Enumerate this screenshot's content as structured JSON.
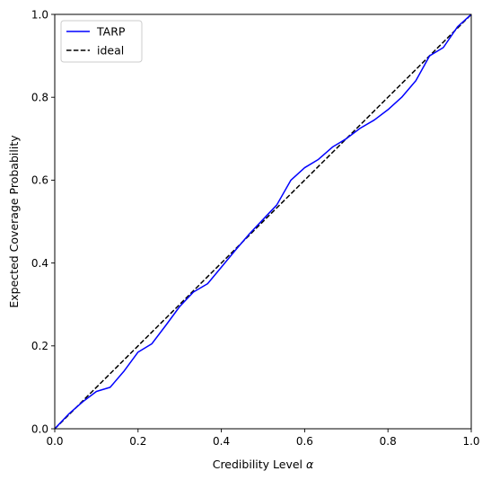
{
  "chart_data": {
    "type": "line",
    "xlabel": "Credibility Level",
    "xlabel_symbol": "α",
    "ylabel": "Expected Coverage Probability",
    "xlim": [
      0,
      1
    ],
    "ylim": [
      0,
      1
    ],
    "xticks": [
      0.0,
      0.2,
      0.4,
      0.6,
      0.8,
      1.0
    ],
    "yticks": [
      0.0,
      0.2,
      0.4,
      0.6,
      0.8,
      1.0
    ],
    "xtick_labels": [
      "0.0",
      "0.2",
      "0.4",
      "0.6",
      "0.8",
      "1.0"
    ],
    "ytick_labels": [
      "0.0",
      "0.2",
      "0.4",
      "0.6",
      "0.8",
      "1.0"
    ],
    "grid": false,
    "legend_position": "top-left",
    "series": [
      {
        "name": "TARP",
        "color": "#0000ff",
        "style": "solid",
        "x": [
          0.0,
          0.033,
          0.067,
          0.1,
          0.133,
          0.167,
          0.2,
          0.233,
          0.267,
          0.3,
          0.333,
          0.367,
          0.4,
          0.433,
          0.467,
          0.5,
          0.533,
          0.567,
          0.6,
          0.633,
          0.667,
          0.7,
          0.733,
          0.767,
          0.8,
          0.833,
          0.867,
          0.9,
          0.933,
          0.967,
          1.0
        ],
        "y": [
          0.0,
          0.035,
          0.065,
          0.09,
          0.1,
          0.14,
          0.185,
          0.205,
          0.25,
          0.295,
          0.33,
          0.35,
          0.39,
          0.43,
          0.47,
          0.505,
          0.54,
          0.6,
          0.63,
          0.65,
          0.68,
          0.7,
          0.725,
          0.745,
          0.77,
          0.8,
          0.84,
          0.9,
          0.92,
          0.97,
          1.0
        ]
      },
      {
        "name": "ideal",
        "color": "#000000",
        "style": "dashed",
        "x": [
          0.0,
          1.0
        ],
        "y": [
          0.0,
          1.0
        ]
      }
    ]
  }
}
